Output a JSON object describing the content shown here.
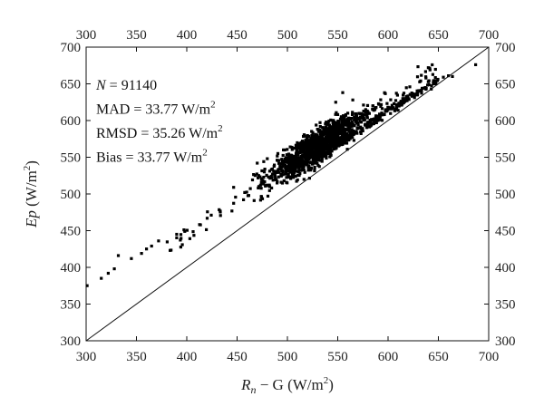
{
  "chart_data": {
    "type": "scatter",
    "xlim": [
      300,
      700
    ],
    "ylim": [
      300,
      700
    ],
    "x_ticks": [
      300,
      350,
      400,
      450,
      500,
      550,
      600,
      650,
      700
    ],
    "y_ticks": [
      300,
      350,
      400,
      450,
      500,
      550,
      600,
      650,
      700
    ],
    "xlabel": {
      "main": "R",
      "sub": "n",
      "rest": " − G (W/m",
      "sup": "2",
      "close": ")"
    },
    "ylabel": {
      "main": "Ep",
      "rest": " (W/m",
      "sup": "2",
      "close": ")"
    },
    "stats": [
      {
        "name": "N",
        "italic": true,
        "text": " = 91140",
        "sup": ""
      },
      {
        "name": "MAD",
        "italic": false,
        "text": " = 33.77 W/m",
        "sup": "2"
      },
      {
        "name": "RMSD",
        "italic": false,
        "text": " = 35.26 W/m",
        "sup": "2"
      },
      {
        "name": "Bias",
        "italic": false,
        "text": " = 33.77 W/m",
        "sup": "2"
      }
    ],
    "reference_line": {
      "from": [
        300,
        300
      ],
      "to": [
        700,
        700
      ]
    },
    "outliers": [
      [
        301,
        375
      ],
      [
        315,
        385
      ],
      [
        322,
        392
      ],
      [
        328,
        398
      ],
      [
        332,
        416
      ],
      [
        345,
        412
      ],
      [
        355,
        419
      ],
      [
        360,
        425
      ],
      [
        365,
        429
      ],
      [
        372,
        436
      ],
      [
        390,
        445
      ],
      [
        398,
        449
      ],
      [
        640,
        653
      ],
      [
        655,
        659
      ],
      [
        660,
        661
      ],
      [
        664,
        660
      ],
      [
        687,
        676
      ],
      [
        640,
        672
      ],
      [
        548,
        625
      ],
      [
        555,
        638
      ],
      [
        565,
        628
      ],
      [
        560,
        610
      ],
      [
        470,
        542
      ],
      [
        480,
        548
      ],
      [
        477,
        530
      ],
      [
        496,
        560
      ],
      [
        515,
        572
      ],
      [
        535,
        590
      ],
      [
        585,
        620
      ],
      [
        590,
        600
      ],
      [
        600,
        618
      ],
      [
        612,
        622
      ],
      [
        620,
        630
      ],
      [
        625,
        636
      ],
      [
        632,
        640
      ],
      [
        645,
        650
      ],
      [
        610,
        614
      ]
    ],
    "grid": false,
    "legend": "none"
  }
}
